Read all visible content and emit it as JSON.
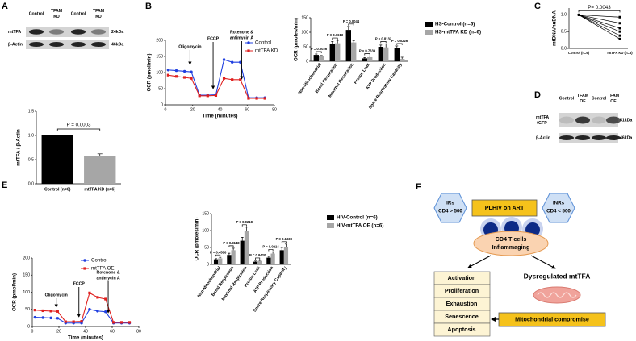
{
  "panel_labels": [
    "A",
    "B",
    "C",
    "D",
    "E",
    "F"
  ],
  "blots": [
    {
      "lanes": [
        [
          "Control"
        ],
        [
          "TFAM",
          "KD"
        ],
        [
          "Control"
        ],
        [
          "TFAM",
          "KD"
        ]
      ],
      "rows": [
        {
          "name": [
            "mtTFA"
          ],
          "size": "24kDa"
        },
        {
          "name": [
            "β-Actin"
          ],
          "size": "46kDa"
        }
      ]
    },
    {
      "lanes": [
        [
          "Control"
        ],
        [
          "TFAM",
          "OE"
        ],
        [
          "Control"
        ],
        [
          "TFAM",
          "OE"
        ]
      ],
      "rows": [
        {
          "name": [
            "mtTFA",
            "+GFP"
          ],
          "size": "51kDa"
        },
        {
          "name": [
            "β-Actin"
          ],
          "size": "46kDa"
        }
      ]
    }
  ],
  "chart_data": [
    {
      "type": "bar",
      "ylabel": "mtTFA / β-Actin",
      "categories": [
        "Control (n=6)",
        "mtTFA KD (n=6)"
      ],
      "values": [
        1.0,
        0.58
      ],
      "errors": [
        0,
        0.04
      ],
      "colors": [
        "#000000",
        "#a6a6a6"
      ],
      "ylim": [
        0,
        1.5
      ],
      "yticks": [
        {
          "value": 0,
          "label": "0.0"
        },
        {
          "value": 0.5,
          "label": "0.5"
        },
        {
          "value": 1,
          "label": "1.0"
        },
        {
          "value": 1.5,
          "label": "1.5"
        }
      ],
      "annotation": "P = 0.0003"
    },
    {
      "type": "line",
      "xlabel": "Time (minutes)",
      "ylabel": "OCR (pmol/min)",
      "x": [
        2,
        8,
        14,
        19,
        25,
        31,
        37,
        43,
        49,
        55,
        61,
        67,
        73
      ],
      "xlim": [
        0,
        80
      ],
      "xticks": [
        0,
        20,
        40,
        60,
        80
      ],
      "ylim": [
        0,
        200
      ],
      "yticks": [
        0,
        50,
        100,
        150,
        200
      ],
      "series": [
        {
          "name": "Control",
          "color": "#1f3fe0",
          "values": [
            108,
            106,
            104,
            102,
            30,
            30,
            31,
            140,
            132,
            132,
            22,
            22,
            22
          ]
        },
        {
          "name": "mtTFA KD",
          "color": "#e0201f",
          "values": [
            92,
            88,
            85,
            82,
            28,
            28,
            29,
            82,
            78,
            78,
            20,
            20,
            20
          ]
        }
      ],
      "events": [
        {
          "label": [
            "Oligomycin"
          ],
          "x": 18
        },
        {
          "label": [
            "FCCP"
          ],
          "x": 35
        },
        {
          "label": [
            "Rotenone &",
            "antimycin A"
          ],
          "x": 56
        }
      ]
    },
    {
      "type": "grouped_bar",
      "ylabel": "OCR (pmoles/min)",
      "categories": [
        "Non-Mitochondrial",
        "Basal Respiration",
        "Maximal Respiration",
        "Proton Leak",
        "ATP Production",
        "Spare Respiratory Capacity"
      ],
      "ylim": [
        0,
        150
      ],
      "yticks": [
        0,
        50,
        100,
        150
      ],
      "series": [
        {
          "name": "HS-Control (n=6)",
          "color": "#000000",
          "values": [
            22,
            60,
            108,
            10,
            50,
            45
          ],
          "errors": [
            3,
            8,
            12,
            3,
            6,
            8
          ]
        },
        {
          "name": "HS-mtTFA KD (n=6)",
          "color": "#a6a6a6",
          "values": [
            18,
            62,
            65,
            14,
            48,
            8
          ],
          "errors": [
            2,
            10,
            6,
            4,
            12,
            6
          ]
        }
      ],
      "annotations": [
        "P = 0.0026",
        "P = 0.6613",
        "P = 0.0044",
        "P = 0.7639",
        "P = 0.8132",
        "P = 0.0226"
      ]
    },
    {
      "type": "paired",
      "ylabel": "mtDNA/nuDNA",
      "categories": [
        "Control (n=6)",
        "mtTFA KD (n=6)"
      ],
      "pairs": [
        [
          1,
          0.93
        ],
        [
          1,
          0.75
        ],
        [
          1,
          0.6
        ],
        [
          1,
          0.5
        ],
        [
          1,
          0.38
        ],
        [
          1,
          0.28
        ]
      ],
      "ylim": [
        0,
        1.2
      ],
      "yticks": [
        {
          "value": 0,
          "label": "0.0"
        },
        {
          "value": 0.5,
          "label": "0.5"
        },
        {
          "value": 1,
          "label": "1.0"
        }
      ],
      "annotation": "P= 0.0043"
    },
    {
      "type": "line",
      "xlabel": "Time (minutes)",
      "ylabel": "OCR (pmol/min)",
      "x": [
        2,
        8,
        14,
        19,
        25,
        31,
        37,
        43,
        49,
        55,
        61,
        67,
        73
      ],
      "xlim": [
        0,
        80
      ],
      "xticks": [
        0,
        20,
        40,
        60,
        80
      ],
      "ylim": [
        0,
        200
      ],
      "yticks": [
        0,
        50,
        100,
        150,
        200
      ],
      "series": [
        {
          "name": "Control",
          "color": "#1f3fe0",
          "values": [
            27,
            26,
            25,
            24,
            10,
            10,
            10,
            50,
            45,
            43,
            10,
            10,
            10
          ]
        },
        {
          "name": "mtTFA OE",
          "color": "#e0201f",
          "values": [
            48,
            46,
            45,
            44,
            14,
            14,
            15,
            98,
            85,
            80,
            12,
            12,
            12
          ]
        }
      ],
      "events": [
        {
          "label": [
            "Oligomycin"
          ],
          "x": 18
        },
        {
          "label": [
            "FCCP"
          ],
          "x": 35
        },
        {
          "label": [
            "Rotenone &",
            "antimycin A"
          ],
          "x": 57
        }
      ]
    },
    {
      "type": "grouped_bar",
      "ylabel": "OCR (pmoles/min)",
      "categories": [
        "Non-Mitochondrial",
        "Basal Respiration",
        "Maximal Respiration",
        "Proton Leak",
        "ATP Production",
        "Spare Respiratory Capacity"
      ],
      "ylim": [
        0,
        150
      ],
      "yticks": [
        0,
        50,
        100,
        150
      ],
      "series": [
        {
          "name": "HIV-Control (n=6)",
          "color": "#000000",
          "values": [
            15,
            28,
            70,
            8,
            20,
            42
          ],
          "errors": [
            2,
            5,
            10,
            2,
            4,
            8
          ]
        },
        {
          "name": "HIV-mtTFA OE (n=6)",
          "color": "#a6a6a6",
          "values": [
            18,
            42,
            98,
            10,
            32,
            52
          ],
          "errors": [
            3,
            6,
            12,
            2,
            5,
            8
          ]
        }
      ],
      "annotations": [
        "P = 0.4586",
        "P = 0.3148",
        "P = 0.0218",
        "P = 0.9420",
        "P = 0.0214",
        "P = 0.1938"
      ]
    }
  ],
  "diagram": {
    "irs": [
      "IRs",
      "CD4 > 500"
    ],
    "plhiv": "PLHIV on ART",
    "inrs": [
      "INRs",
      "CD4 < 500"
    ],
    "cd4": [
      "CD4 T cells",
      "Inflammaging"
    ],
    "outcomes": [
      "Activation",
      "Proliferation",
      "Exhaustion",
      "Senescence",
      "Apoptosis"
    ],
    "dysregulated": "Dysregulated mtTFA",
    "compromise": "Mitochondrial compromise"
  }
}
